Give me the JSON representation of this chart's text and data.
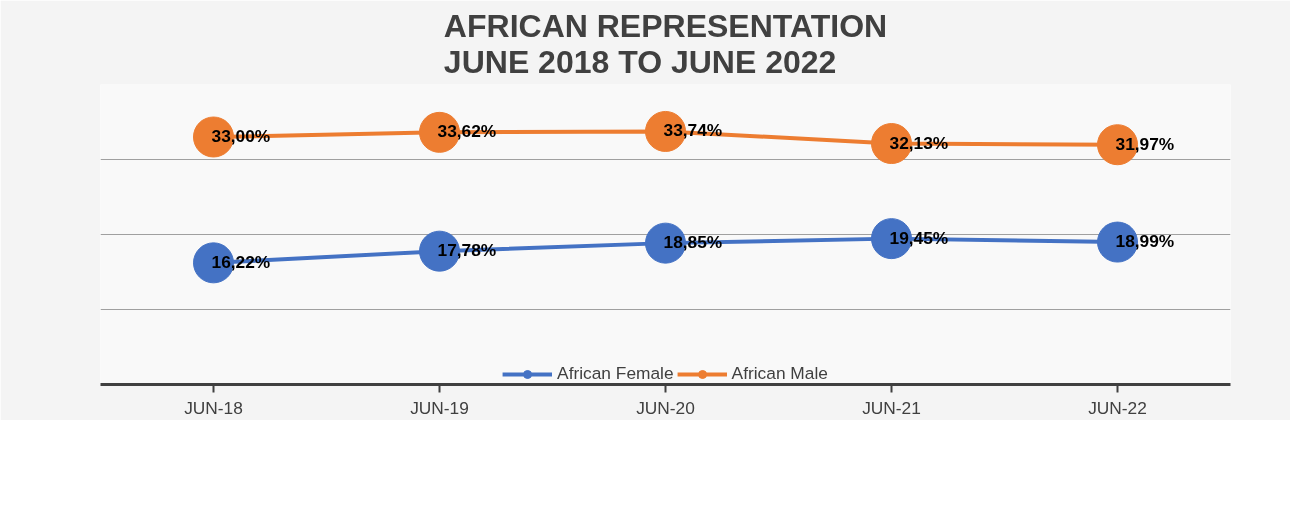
{
  "chart_data": {
    "type": "line",
    "title": "AFRICAN REPRESENTATION\nJUNE 2018 TO JUNE 2022",
    "categories": [
      "JUN-18",
      "JUN-19",
      "JUN-20",
      "JUN-21",
      "JUN-22"
    ],
    "series": [
      {
        "name": "African Female",
        "color": "#4472c4",
        "values": [
          16.22,
          17.78,
          18.85,
          19.45,
          18.99
        ],
        "value_labels": [
          "16,22%",
          "17,78%",
          "18,85%",
          "19,45%",
          "18,99%"
        ]
      },
      {
        "name": "African Male",
        "color": "#ed7d31",
        "values": [
          33.0,
          33.62,
          33.74,
          32.13,
          31.97
        ],
        "value_labels": [
          "33,00%",
          "33,62%",
          "33,74%",
          "32,13%",
          "31,97%"
        ]
      }
    ],
    "ylim": [
      0,
      40
    ],
    "yticks": [
      {
        "value": 0,
        "label": null
      },
      {
        "value": 10,
        "label": null
      },
      {
        "value": 20,
        "label": null
      },
      {
        "value": 30,
        "label": null
      },
      {
        "value": 40,
        "label": null
      }
    ],
    "tick_labels": "x",
    "grid": "y",
    "legend": "bottom",
    "marker": "circle",
    "line_style": "solid"
  }
}
